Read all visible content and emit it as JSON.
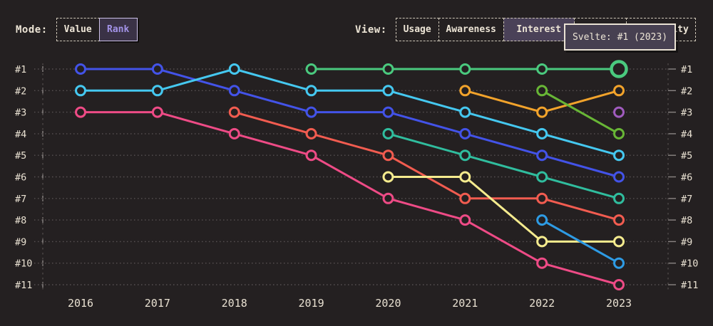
{
  "toolbar": {
    "mode_label": "Mode:",
    "mode_options": [
      {
        "label": "Value",
        "selected": false
      },
      {
        "label": "Rank",
        "selected": true
      }
    ],
    "view_label": "View:",
    "view_options": [
      {
        "label": "Usage",
        "selected": false
      },
      {
        "label": "Awareness",
        "selected": false
      },
      {
        "label": "Interest",
        "selected": true
      },
      {
        "label": "",
        "selected": false
      },
      {
        "label": "Positivity",
        "selected": false
      }
    ]
  },
  "tooltip": {
    "text": "Svelte: #1 (2023)"
  },
  "chart_data": {
    "type": "line",
    "variant": "bump-rank",
    "title": "",
    "xlabel": "",
    "ylabel": "",
    "legend": "none",
    "grid": "dotted-horizontal",
    "x": [
      "2016",
      "2017",
      "2018",
      "2019",
      "2020",
      "2021",
      "2022",
      "2023"
    ],
    "rank_labels": [
      "#1",
      "#2",
      "#3",
      "#4",
      "#5",
      "#6",
      "#7",
      "#8",
      "#9",
      "#10",
      "#11"
    ],
    "best_rank": 1,
    "worst_rank": 11,
    "series": [
      {
        "name": "blue",
        "color": "#4353E8",
        "ranks": [
          1,
          1,
          2,
          3,
          3,
          4,
          5,
          6
        ]
      },
      {
        "name": "cyan",
        "color": "#45C8F0",
        "ranks": [
          2,
          2,
          1,
          2,
          2,
          3,
          4,
          5
        ]
      },
      {
        "name": "pink",
        "color": "#EE4B86",
        "ranks": [
          3,
          3,
          4,
          5,
          7,
          8,
          10,
          11
        ]
      },
      {
        "name": "red",
        "color": "#F25C50",
        "ranks": [
          null,
          null,
          3,
          4,
          5,
          7,
          7,
          8
        ]
      },
      {
        "name": "Svelte",
        "color": "#4AC97E",
        "ranks": [
          null,
          null,
          null,
          1,
          1,
          1,
          1,
          1
        ]
      },
      {
        "name": "teal",
        "color": "#30BD9E",
        "ranks": [
          null,
          null,
          null,
          null,
          4,
          5,
          6,
          7
        ]
      },
      {
        "name": "yellow",
        "color": "#F5EB8E",
        "ranks": [
          null,
          null,
          null,
          null,
          6,
          6,
          9,
          9
        ]
      },
      {
        "name": "orange",
        "color": "#F2A32B",
        "ranks": [
          null,
          null,
          null,
          null,
          null,
          2,
          3,
          2
        ]
      },
      {
        "name": "olive-green",
        "color": "#68B636",
        "ranks": [
          null,
          null,
          null,
          null,
          null,
          null,
          2,
          4
        ]
      },
      {
        "name": "sky-blue",
        "color": "#2E9BE4",
        "ranks": [
          null,
          null,
          null,
          null,
          null,
          null,
          8,
          10
        ]
      },
      {
        "name": "purple",
        "color": "#A05BBE",
        "ranks": [
          null,
          null,
          null,
          null,
          null,
          null,
          null,
          3
        ]
      }
    ],
    "highlight": {
      "series": "Svelte",
      "x": "2023",
      "rank": 1
    },
    "colors": {
      "background": "#242021",
      "text": "#EDE5D6",
      "grid_dots": "#575152",
      "axis_dashed": "#4C4747",
      "ticks": "#8A8483",
      "selected_mode_bg": "#3A3246",
      "selected_mode_text": "#A393E8",
      "selected_view_bg": "#4A4158",
      "tooltip_bg": "#474051",
      "tooltip_border": "#EAE2D4"
    }
  }
}
